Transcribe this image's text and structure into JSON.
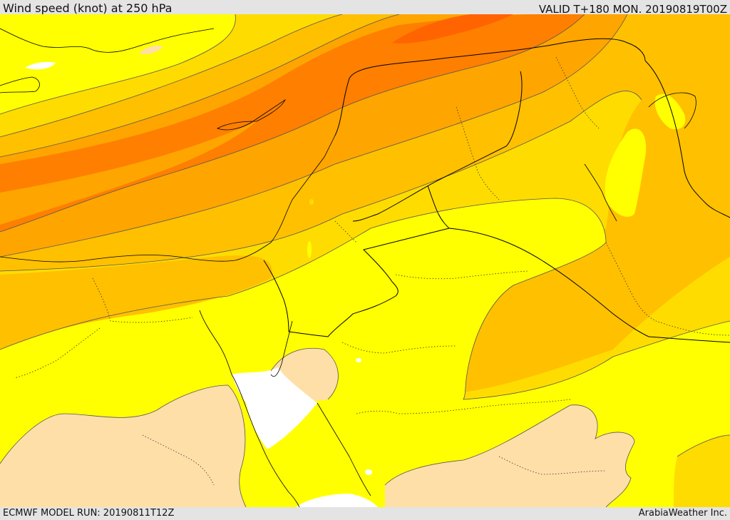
{
  "header": {
    "title": "Wind speed (knot) at 250 hPa",
    "valid": "VALID T+180 MON. 20190819T00Z"
  },
  "footer": {
    "model_run": "ECMWF MODEL RUN: 20190811T12Z",
    "credit": "ArabiaWeather Inc."
  },
  "map": {
    "field": "wind-speed-250hPa",
    "colors": {
      "white": "#ffffff",
      "tan": "#ffdfa8",
      "yellow": "#ffff00",
      "gold": "#ffdc00",
      "amber": "#ffc000",
      "orange": "#ffa500",
      "dark_orange": "#ff7f00",
      "red_orange": "#ff6400",
      "boundary": "#000000"
    }
  }
}
